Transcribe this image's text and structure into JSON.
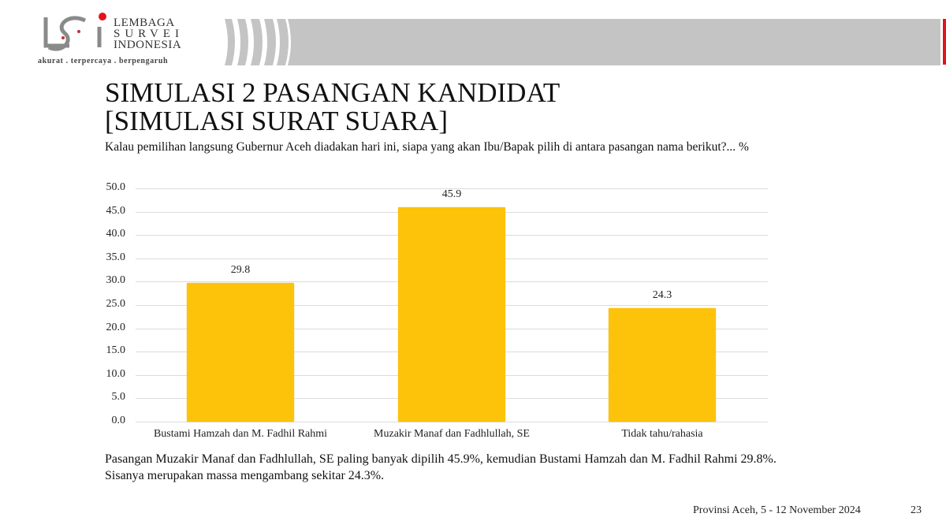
{
  "header": {
    "logo_line1": "LEMBAGA",
    "logo_line2": "SURVEI",
    "logo_line3": "INDONESIA",
    "logo_tagline": "akurat . terpercaya . berpengaruh",
    "bar_color": "#c4c4c4",
    "accent_color": "#e3141b"
  },
  "slide": {
    "title_line1": "SIMULASI 2 PASANGAN KANDIDAT",
    "title_line2": "[SIMULASI SURAT SUARA]",
    "subtitle": "Kalau pemilihan langsung Gubernur Aceh diadakan hari ini, siapa yang akan Ibu/Bapak pilih di antara pasangan nama berikut?... %",
    "note": "Pasangan Muzakir Manaf dan Fadhlullah, SE paling banyak dipilih 45.9%, kemudian Bustami Hamzah dan M. Fadhil Rahmi 29.8%. Sisanya merupakan massa mengambang sekitar 24.3%.",
    "footer_source": "Provinsi Aceh, 5 - 12 November 2024",
    "page_number": "23"
  },
  "chart_data": {
    "type": "bar",
    "title": "",
    "categories": [
      "Bustami Hamzah dan M. Fadhil Rahmi",
      "Muzakir Manaf dan Fadhlullah, SE",
      "Tidak tahu/rahasia"
    ],
    "values": [
      29.8,
      45.9,
      24.3
    ],
    "value_labels": [
      "29.8",
      "45.9",
      "24.3"
    ],
    "xlabel": "",
    "ylabel": "%",
    "ylim": [
      0,
      50
    ],
    "yticks": [
      "0.0",
      "5.0",
      "10.0",
      "15.0",
      "20.0",
      "25.0",
      "30.0",
      "35.0",
      "40.0",
      "45.0",
      "50.0"
    ],
    "grid": true,
    "legend": "none",
    "bar_color": "#fcc30a"
  }
}
